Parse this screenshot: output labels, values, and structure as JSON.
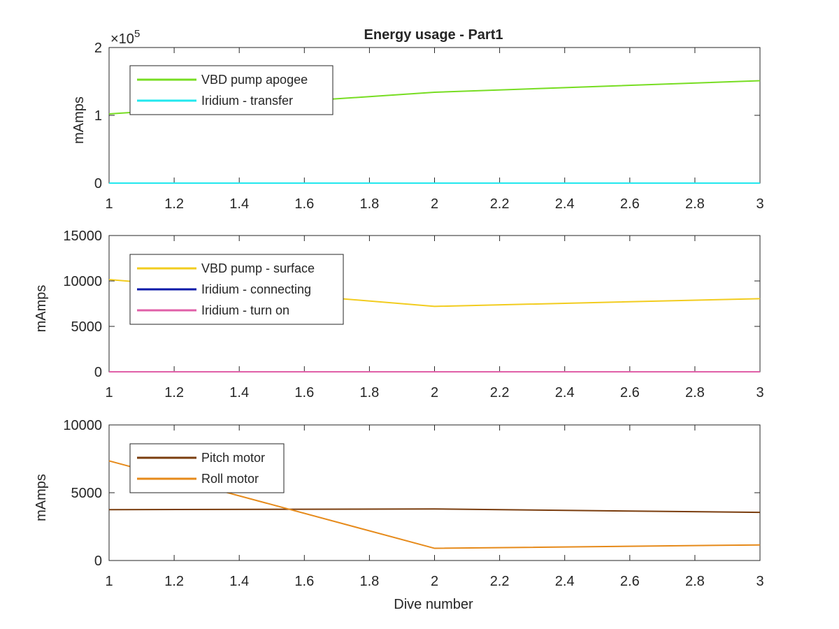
{
  "figure": {
    "title": "Energy usage - Part1",
    "xlabel": "Dive number"
  },
  "chart_data": [
    {
      "type": "line",
      "title": "Energy usage - Part1",
      "xlabel": "",
      "ylabel": "mAmps",
      "exponent_base": "10",
      "exponent_power": "5",
      "xlim": [
        1,
        3
      ],
      "ylim": [
        0,
        2
      ],
      "x_ticks": [
        "1",
        "1.2",
        "1.4",
        "1.6",
        "1.8",
        "2",
        "2.2",
        "2.4",
        "2.6",
        "2.8",
        "3"
      ],
      "y_ticks": [
        "0",
        "1",
        "2"
      ],
      "legend_position": "top-left",
      "grid": false,
      "x": [
        1,
        2,
        3
      ],
      "series": [
        {
          "name": "VBD pump apogee",
          "color": "#77dd22",
          "values": [
            1.02,
            1.34,
            1.51
          ]
        },
        {
          "name": "Iridium - transfer",
          "color": "#22e8ee",
          "values": [
            0,
            0,
            0
          ]
        }
      ]
    },
    {
      "type": "line",
      "title": "",
      "xlabel": "",
      "ylabel": "mAmps",
      "xlim": [
        1,
        3
      ],
      "ylim": [
        0,
        15000
      ],
      "x_ticks": [
        "1",
        "1.2",
        "1.4",
        "1.6",
        "1.8",
        "2",
        "2.2",
        "2.4",
        "2.6",
        "2.8",
        "3"
      ],
      "y_ticks": [
        "0",
        "5000",
        "10000",
        "15000"
      ],
      "legend_position": "top-left",
      "grid": false,
      "x": [
        1,
        2,
        3
      ],
      "series": [
        {
          "name": "VBD pump - surface",
          "color": "#f2cc1f",
          "values": [
            10150,
            7200,
            8050
          ]
        },
        {
          "name": "Iridium - connecting",
          "color": "#0a1aa8",
          "values": [
            0,
            0,
            0
          ]
        },
        {
          "name": "Iridium - turn on",
          "color": "#e060a8",
          "values": [
            0,
            0,
            0
          ]
        }
      ]
    },
    {
      "type": "line",
      "title": "",
      "xlabel": "Dive number",
      "ylabel": "mAmps",
      "xlim": [
        1,
        3
      ],
      "ylim": [
        0,
        10000
      ],
      "x_ticks": [
        "1",
        "1.2",
        "1.4",
        "1.6",
        "1.8",
        "2",
        "2.2",
        "2.4",
        "2.6",
        "2.8",
        "3"
      ],
      "y_ticks": [
        "0",
        "5000",
        "10000"
      ],
      "legend_position": "top-left",
      "grid": false,
      "x": [
        1,
        2,
        3
      ],
      "series": [
        {
          "name": "Pitch motor",
          "color": "#7a3d0e",
          "values": [
            3750,
            3800,
            3550
          ]
        },
        {
          "name": "Roll motor",
          "color": "#e68a1a",
          "values": [
            7350,
            900,
            1150
          ]
        }
      ]
    }
  ]
}
